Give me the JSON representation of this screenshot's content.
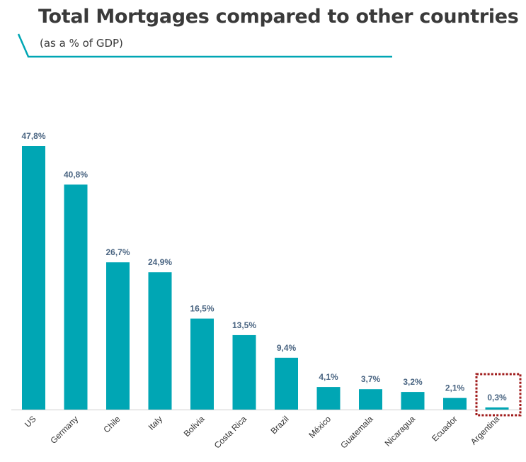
{
  "header": {
    "title": "Total Mortgages compared to other countries",
    "subtitle": "(as a % of GDP)"
  },
  "colors": {
    "bar": "#00A6B4",
    "accent_line": "#00A6B4",
    "value_label": "#4A6582",
    "highlight_box": "#A01C1C"
  },
  "chart_data": {
    "type": "bar",
    "title": "Total Mortgages compared to other countries",
    "subtitle": "(as a % of GDP)",
    "xlabel": "",
    "ylabel": "",
    "ylim": [
      0,
      50
    ],
    "grid": false,
    "categories": [
      "US",
      "Germany",
      "Chile",
      "Italy",
      "Bolivia",
      "Costa Rica",
      "Brazil",
      "México",
      "Guatemala",
      "Nicaragua",
      "Ecuador",
      "Argentina"
    ],
    "values": [
      47.8,
      40.8,
      26.7,
      24.9,
      16.5,
      13.5,
      9.4,
      4.1,
      3.7,
      3.2,
      2.1,
      0.3
    ],
    "data_labels": [
      "47,8%",
      "40,8%",
      "26,7%",
      "24,9%",
      "16,5%",
      "13,5%",
      "9,4%",
      "4,1%",
      "3,7%",
      "3,2%",
      "2,1%",
      "0,3%"
    ],
    "highlighted_category": "Argentina"
  }
}
